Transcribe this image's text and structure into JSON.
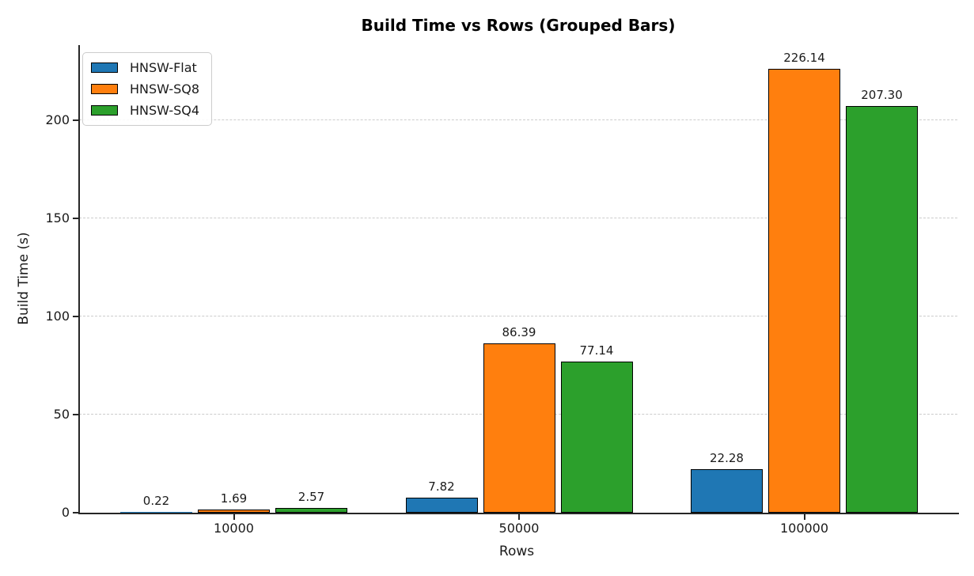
{
  "chart_data": {
    "type": "bar",
    "title": "Build Time vs Rows (Grouped Bars)",
    "xlabel": "Rows",
    "ylabel": "Build Time (s)",
    "categories": [
      "10000",
      "50000",
      "100000"
    ],
    "series": [
      {
        "name": "HNSW-Flat",
        "color": "#1f77b4",
        "values": [
          0.22,
          7.82,
          22.28
        ],
        "labels": [
          "0.22",
          "7.82",
          "22.28"
        ]
      },
      {
        "name": "HNSW-SQ8",
        "color": "#ff7f0e",
        "values": [
          1.69,
          86.39,
          226.14
        ],
        "labels": [
          "1.69",
          "86.39",
          "226.14"
        ]
      },
      {
        "name": "HNSW-SQ4",
        "color": "#2ca02c",
        "values": [
          2.57,
          77.14,
          207.3
        ],
        "labels": [
          "2.57",
          "77.14",
          "207.30"
        ]
      }
    ],
    "yticks": [
      0,
      50,
      100,
      150,
      200
    ],
    "ylim": [
      0,
      238
    ],
    "grid": "horizontal-dashed",
    "legend_position": "upper-left",
    "bar_edge_color": "#000000",
    "gridline_color": "#cccccc",
    "axis_color": "#262626"
  }
}
